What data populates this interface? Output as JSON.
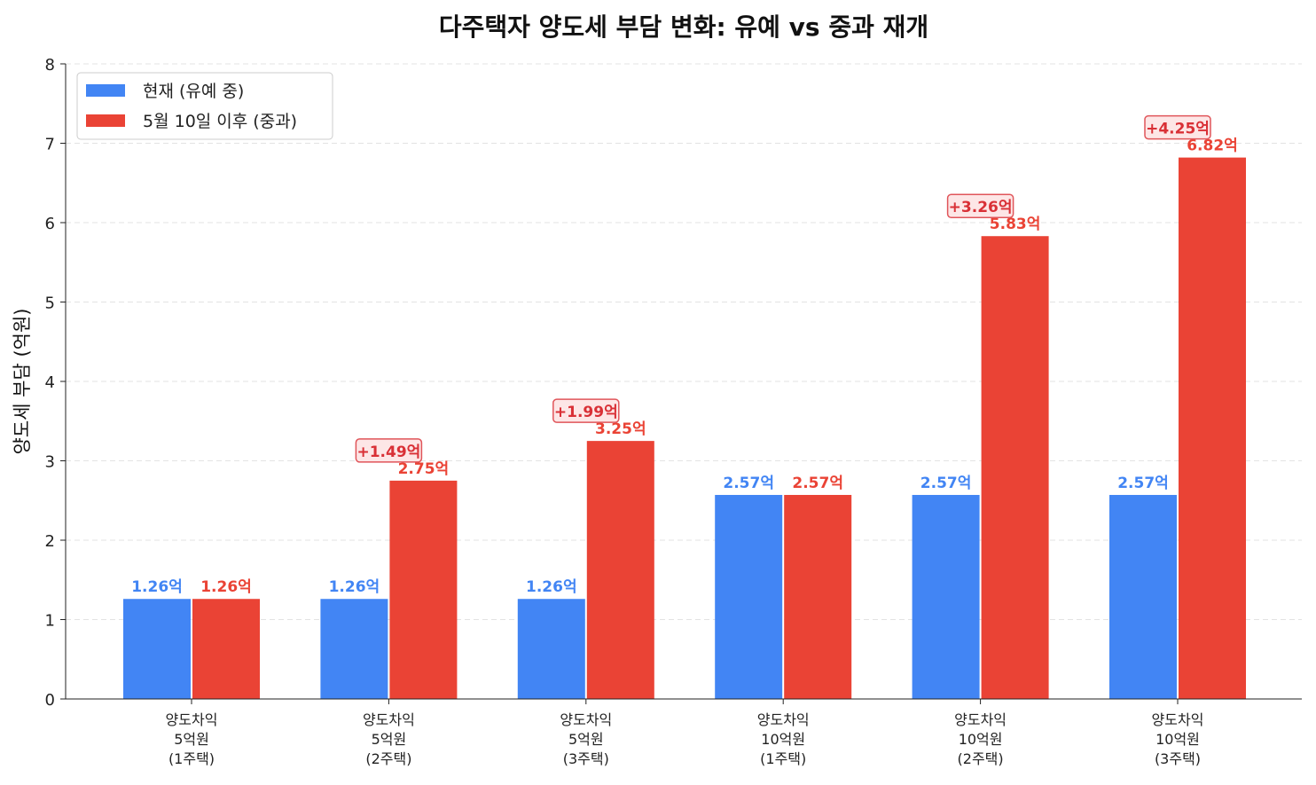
{
  "chart_data": {
    "type": "bar",
    "title": "다주택자 양도세 부담 변화: 유예 vs 중과 재개",
    "xlabel": "",
    "ylabel": "양도세 부담 (억원)",
    "ylim": [
      0,
      8
    ],
    "yticks": [
      "0",
      "1",
      "2",
      "3",
      "4",
      "5",
      "6",
      "7",
      "8"
    ],
    "grid": "y, dashed",
    "legend_position": "top-left",
    "categories": [
      [
        "양도차익",
        "5억원",
        "(1주택)"
      ],
      [
        "양도차익",
        "5억원",
        "(2주택)"
      ],
      [
        "양도차익",
        "5억원",
        "(3주택)"
      ],
      [
        "양도차익",
        "10억원",
        "(1주택)"
      ],
      [
        "양도차익",
        "10억원",
        "(2주택)"
      ],
      [
        "양도차익",
        "10억원",
        "(3주택)"
      ]
    ],
    "series": [
      {
        "name": "현재 (유예 중)",
        "color": "#4285F4",
        "values": [
          1.26,
          1.26,
          1.26,
          2.57,
          2.57,
          2.57
        ],
        "labels": [
          "1.26억",
          "1.26억",
          "1.26억",
          "2.57억",
          "2.57억",
          "2.57억"
        ]
      },
      {
        "name": "5월 10일 이후 (중과)",
        "color": "#EA4335",
        "values": [
          1.26,
          2.75,
          3.25,
          2.57,
          5.83,
          6.82
        ],
        "labels": [
          "1.26억",
          "2.75억",
          "3.25억",
          "2.57억",
          "5.83억",
          "6.82억"
        ]
      }
    ],
    "annotations": [
      {
        "category_index": 1,
        "text": "+1.49억"
      },
      {
        "category_index": 2,
        "text": "+1.99억"
      },
      {
        "category_index": 4,
        "text": "+3.26억"
      },
      {
        "category_index": 5,
        "text": "+4.25억"
      }
    ]
  }
}
